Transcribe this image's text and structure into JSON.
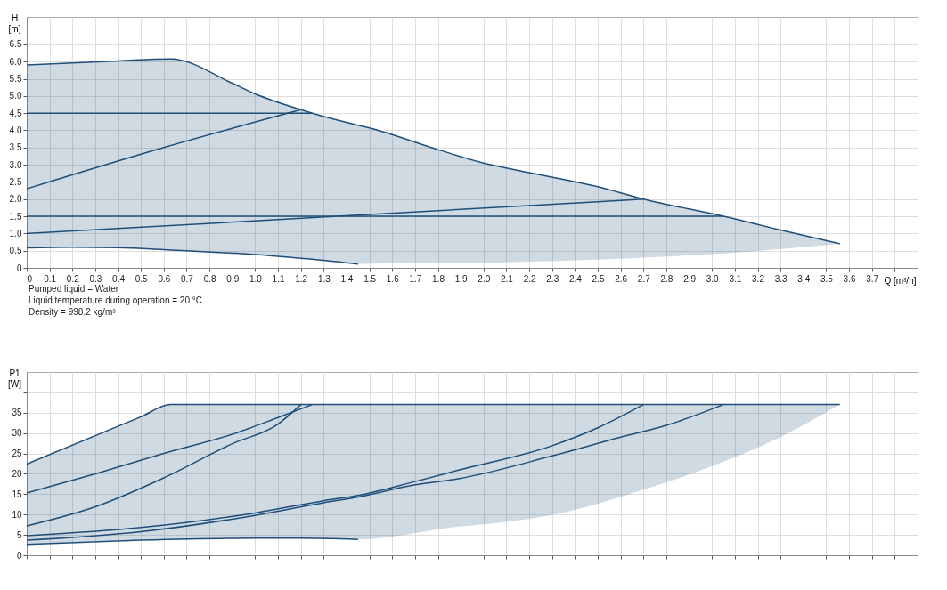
{
  "chart_data": [
    {
      "type": "line",
      "xlabel": "Q [m³/h]",
      "ylabel": "H [m]",
      "xlim": [
        0,
        3.9
      ],
      "ylim": [
        0,
        7.3
      ],
      "xticks": [
        {
          "value": 0,
          "label": "0"
        },
        0.1,
        0.2,
        0.3,
        0.4,
        0.5,
        0.6,
        0.7,
        0.8,
        0.9,
        {
          "value": 1,
          "label": "1.0"
        },
        1.1,
        1.2,
        1.3,
        1.4,
        1.5,
        1.6,
        1.7,
        1.8,
        1.9,
        {
          "value": 2,
          "label": "2.0"
        },
        2.1,
        2.2,
        2.3,
        2.4,
        2.5,
        2.6,
        2.7,
        2.8,
        2.9,
        {
          "value": 3,
          "label": "3.0"
        },
        3.1,
        3.2,
        3.3,
        3.4,
        3.5,
        3.6,
        3.7,
        {
          "value": 3.8,
          "label": null
        }
      ],
      "yticks": [
        {
          "value": 0,
          "label": "0"
        },
        0.5,
        {
          "value": 1,
          "label": "1.0"
        },
        1.5,
        {
          "value": 2,
          "label": "2.0"
        },
        2.5,
        {
          "value": 3,
          "label": "3.0"
        },
        3.5,
        {
          "value": 4,
          "label": "4.0"
        },
        4.5,
        {
          "value": 5,
          "label": "5.0"
        },
        5.5,
        {
          "value": 6,
          "label": "6.0"
        },
        6.5,
        {
          "value": 7,
          "label": null
        }
      ],
      "grid": true,
      "line_style": "solid",
      "marker": "none",
      "annotations": [
        "Pumped liquid = Water",
        "Liquid temperature during operation = 20 °C",
        "Density = 998.2 kg/m³"
      ],
      "series": [
        {
          "color": "#1f4e79",
          "x": [
            0,
            0.2,
            0.4,
            0.63,
            0.9,
            1.0,
            1.2,
            1.25,
            1.45,
            1.5,
            1.8,
            2.0,
            2.2,
            2.5,
            2.7,
            3.05,
            3.3,
            3.56
          ],
          "values": [
            5.9,
            5.96,
            6.02,
            6.08,
            5.37,
            5.06,
            4.6,
            4.5,
            4.15,
            4.07,
            3.44,
            3.05,
            2.77,
            2.36,
            2.0,
            1.5,
            1.1,
            0.7
          ],
          "lower": [
            0.58,
            0.6,
            0.59,
            0.52,
            0.43,
            0.39,
            0.28,
            0.25,
            0.11,
            0.12,
            0.14,
            0.15,
            0.18,
            0.24,
            0.3,
            0.42,
            0.55,
            0.7
          ],
          "upper": [
            5.9,
            5.96,
            6.02,
            6.08,
            5.37,
            5.06,
            4.6,
            4.5,
            4.15,
            4.07,
            3.44,
            3.05,
            2.77,
            2.36,
            2.0,
            1.5,
            1.1,
            0.7
          ]
        },
        {
          "color": "#1f4e79",
          "x": [
            0,
            0.2,
            0.4,
            0.63,
            0.9,
            1.0,
            1.2,
            1.25,
            1.45
          ],
          "values": [
            0.58,
            0.6,
            0.59,
            0.52,
            0.43,
            0.39,
            0.28,
            0.25,
            0.11
          ]
        },
        {
          "color": "#1f4e79",
          "x": [
            0,
            1.25
          ],
          "values": [
            4.5,
            4.5
          ]
        },
        {
          "color": "#1f4e79",
          "x": [
            0,
            0.6,
            1.2
          ],
          "values": [
            2.3,
            3.5,
            4.6
          ]
        },
        {
          "color": "#1f4e79",
          "x": [
            0,
            3.05
          ],
          "values": [
            1.5,
            1.5
          ]
        },
        {
          "color": "#1f4e79",
          "x": [
            0,
            1.5,
            2.7
          ],
          "values": [
            1.0,
            1.55,
            2.0
          ]
        }
      ]
    },
    {
      "type": "line",
      "ylabel": "P1 [W]",
      "xlim": [
        0,
        3.9
      ],
      "ylim": [
        0,
        45
      ],
      "tick_labels": "y",
      "xticks": [
        0,
        0.1,
        0.2,
        0.3,
        0.4,
        0.5,
        0.6,
        0.7,
        0.8,
        0.9,
        1,
        1.1,
        1.2,
        1.3,
        1.4,
        1.5,
        1.6,
        1.7,
        1.8,
        1.9,
        2,
        2.1,
        2.2,
        2.3,
        2.4,
        2.5,
        2.6,
        2.7,
        2.8,
        2.9,
        3,
        3.1,
        3.2,
        3.3,
        3.4,
        3.5,
        3.6,
        3.7,
        3.8
      ],
      "yticks": [
        0,
        5,
        10,
        15,
        20,
        25,
        30,
        35,
        {
          "value": 40,
          "label": null
        }
      ],
      "grid": true,
      "line_style": "solid",
      "marker": "none",
      "series": [
        {
          "color": "#1f4e79",
          "x": [
            0,
            0.5,
            0.63,
            1.0,
            1.2,
            1.45,
            1.9,
            2.0,
            2.35,
            2.7,
            3.0,
            3.3,
            3.56
          ],
          "values": [
            22.4,
            34.0,
            37,
            37,
            37,
            37,
            37,
            37,
            37,
            37,
            37,
            37,
            37
          ],
          "lower": [
            2.7,
            3.7,
            3.8,
            4.2,
            4.2,
            3.9,
            7.1,
            7.6,
            10.5,
            16.1,
            21.9,
            29.0,
            37
          ],
          "upper": [
            22.4,
            34.0,
            37,
            37,
            37,
            37,
            37,
            37,
            37,
            37,
            37,
            37,
            37
          ]
        },
        {
          "color": "#1f4e79",
          "x": [
            0,
            0.5,
            1.0,
            1.2,
            1.45
          ],
          "values": [
            2.7,
            3.7,
            4.2,
            4.2,
            3.9
          ]
        },
        {
          "color": "#1f4e79",
          "x": [
            0,
            0.3,
            0.6,
            0.9,
            1.1,
            1.25
          ],
          "values": [
            15.3,
            20.0,
            25.0,
            29.7,
            33.8,
            37
          ]
        },
        {
          "color": "#1f4e79",
          "x": [
            0,
            0.3,
            0.6,
            0.9,
            1.1,
            1.2
          ],
          "values": [
            7.2,
            11.9,
            19.0,
            27.4,
            32.2,
            37
          ]
        },
        {
          "color": "#1f4e79",
          "x": [
            0,
            0.5,
            1.0,
            1.3,
            1.45,
            1.7,
            1.89,
            2.3,
            2.5,
            2.7
          ],
          "values": [
            4.8,
            6.8,
            10.4,
            13.4,
            14.7,
            18.1,
            20.9,
            26.9,
            31.3,
            37
          ]
        },
        {
          "color": "#1f4e79",
          "x": [
            0,
            0.5,
            1.0,
            1.3,
            1.45,
            1.7,
            1.89,
            2.3,
            2.6,
            2.8,
            3.05
          ],
          "values": [
            3.7,
            5.8,
            9.8,
            12.9,
            14.3,
            17.3,
            18.8,
            24.4,
            29.0,
            31.9,
            37
          ]
        }
      ]
    }
  ]
}
